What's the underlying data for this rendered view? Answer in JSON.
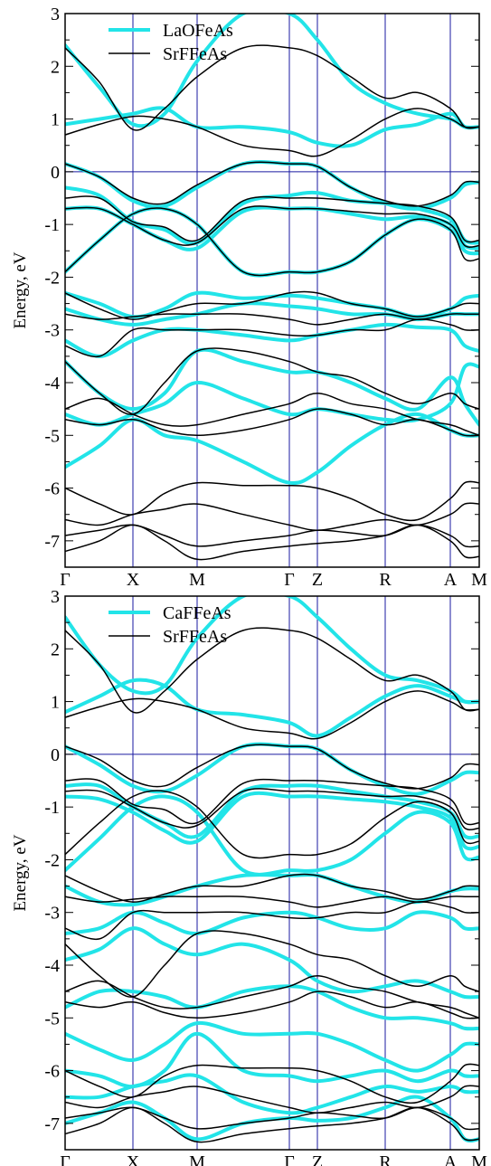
{
  "chart_data": [
    {
      "type": "line",
      "ylabel": "Energy, eV",
      "ylim": [
        -7.5,
        3
      ],
      "yticks": [
        -7,
        -6,
        -5,
        -4,
        -3,
        -2,
        -1,
        0,
        1,
        2,
        3
      ],
      "kpoint_labels": [
        "Γ",
        "X",
        "M",
        "Γ",
        "Z",
        "R",
        "A",
        "M"
      ],
      "fermi_level": 0,
      "legend": [
        "LaOFeAs",
        "SrFFeAs"
      ],
      "legend_position": "top-left",
      "colors": {
        "LaOFeAs": "#22e4e8",
        "SrFFeAs": "#000000",
        "frame": "#000000",
        "vlines": "#1a1aa0"
      },
      "series": [
        {
          "name": "LaOFeAs",
          "bands": [
            [
              2.4,
              1.6,
              0.9,
              1.1,
              2.1,
              3.0,
              3.0,
              2.5,
              1.7,
              1.3,
              1.1,
              1.0,
              0.85,
              0.85
            ],
            [
              0.9,
              1.0,
              1.1,
              1.2,
              0.85,
              0.85,
              0.75,
              0.55,
              0.5,
              0.8,
              0.9,
              1.1,
              0.85,
              0.85
            ],
            [
              0.15,
              -0.1,
              -0.55,
              -0.65,
              -0.3,
              0.15,
              0.15,
              0.1,
              -0.3,
              -0.6,
              -0.7,
              -0.5,
              -0.25,
              -0.2
            ],
            [
              -0.3,
              -0.45,
              -0.95,
              -1.1,
              -1.35,
              -0.6,
              -0.45,
              -0.4,
              -0.55,
              -0.6,
              -0.7,
              -0.9,
              -1.3,
              -1.35
            ],
            [
              -0.7,
              -0.7,
              -1.0,
              -1.3,
              -1.45,
              -0.75,
              -0.7,
              -0.7,
              -0.8,
              -0.9,
              -0.85,
              -1.0,
              -1.4,
              -1.45
            ],
            [
              -1.9,
              -1.3,
              -0.8,
              -0.7,
              -1.0,
              -1.9,
              -1.9,
              -1.9,
              -1.7,
              -1.2,
              -0.9,
              -1.1,
              -1.5,
              -1.55
            ],
            [
              -2.3,
              -2.5,
              -2.75,
              -2.6,
              -2.3,
              -2.4,
              -2.35,
              -2.4,
              -2.5,
              -2.6,
              -2.75,
              -2.6,
              -2.4,
              -2.35
            ],
            [
              -2.6,
              -2.8,
              -2.9,
              -2.8,
              -2.7,
              -2.5,
              -2.55,
              -2.6,
              -2.7,
              -2.7,
              -2.8,
              -2.7,
              -2.7,
              -2.7
            ],
            [
              -3.2,
              -3.5,
              -3.2,
              -3.0,
              -3.0,
              -3.1,
              -3.2,
              -3.1,
              -3.0,
              -2.9,
              -2.95,
              -3.0,
              -3.3,
              -3.4
            ],
            [
              -3.6,
              -4.2,
              -4.5,
              -4.2,
              -3.4,
              -3.6,
              -3.8,
              -3.8,
              -4.0,
              -4.3,
              -4.5,
              -3.9,
              -4.4,
              -4.8
            ],
            [
              -4.6,
              -4.8,
              -4.6,
              -4.4,
              -4.0,
              -4.3,
              -4.6,
              -4.5,
              -4.6,
              -4.7,
              -4.7,
              -4.4,
              -3.7,
              -3.7
            ],
            [
              -5.6,
              -5.2,
              -4.7,
              -5.0,
              -5.1,
              -5.5,
              -5.9,
              -5.7,
              -5.2,
              -4.8,
              -4.6,
              -4.9,
              -5.0,
              -5.0
            ]
          ]
        },
        {
          "name": "SrFFeAs",
          "bands": [
            [
              2.35,
              1.7,
              0.8,
              1.2,
              1.8,
              2.35,
              2.35,
              2.2,
              1.8,
              1.4,
              1.5,
              1.2,
              0.85,
              0.85
            ],
            [
              0.7,
              0.9,
              1.05,
              1.0,
              0.85,
              0.5,
              0.4,
              0.3,
              0.6,
              1.0,
              1.2,
              1.0,
              0.85,
              0.85
            ],
            [
              0.15,
              -0.1,
              -0.5,
              -0.6,
              -0.25,
              0.15,
              0.15,
              0.1,
              -0.3,
              -0.55,
              -0.65,
              -0.45,
              -0.2,
              -0.2
            ],
            [
              -0.5,
              -0.5,
              -0.95,
              -1.05,
              -1.3,
              -0.55,
              -0.5,
              -0.5,
              -0.55,
              -0.6,
              -0.65,
              -0.85,
              -1.3,
              -1.3
            ],
            [
              -0.7,
              -0.7,
              -1.0,
              -1.3,
              -1.35,
              -0.7,
              -0.7,
              -0.7,
              -0.75,
              -0.8,
              -0.8,
              -1.0,
              -1.4,
              -1.4
            ],
            [
              -1.9,
              -1.3,
              -0.8,
              -0.7,
              -1.0,
              -1.9,
              -1.9,
              -1.9,
              -1.7,
              -1.2,
              -0.9,
              -1.1,
              -1.65,
              -1.65
            ],
            [
              -2.3,
              -2.6,
              -2.8,
              -2.65,
              -2.5,
              -2.5,
              -2.3,
              -2.3,
              -2.5,
              -2.6,
              -2.75,
              -2.6,
              -2.5,
              -2.5
            ],
            [
              -2.7,
              -2.8,
              -2.75,
              -2.7,
              -2.7,
              -2.7,
              -2.8,
              -2.9,
              -2.8,
              -2.7,
              -2.8,
              -2.7,
              -2.7,
              -2.7
            ],
            [
              -3.3,
              -3.5,
              -3.0,
              -3.0,
              -3.0,
              -3.0,
              -3.1,
              -3.1,
              -3.0,
              -3.0,
              -2.8,
              -2.9,
              -3.0,
              -3.0
            ],
            [
              -3.6,
              -4.2,
              -4.6,
              -4.0,
              -3.4,
              -3.4,
              -3.6,
              -3.8,
              -3.9,
              -4.2,
              -4.4,
              -4.2,
              -4.4,
              -4.5
            ],
            [
              -4.5,
              -4.3,
              -4.6,
              -4.8,
              -4.8,
              -4.6,
              -4.4,
              -4.2,
              -4.4,
              -4.5,
              -4.7,
              -4.8,
              -4.9,
              -5.0
            ],
            [
              -4.7,
              -4.8,
              -4.7,
              -4.9,
              -5.0,
              -4.9,
              -4.7,
              -4.5,
              -4.6,
              -4.8,
              -4.7,
              -4.9,
              -5.0,
              -5.0
            ],
            [
              -6.0,
              -6.3,
              -6.5,
              -6.1,
              -5.9,
              -5.95,
              -5.95,
              -6.0,
              -6.2,
              -6.5,
              -6.6,
              -6.2,
              -5.9,
              -5.9
            ],
            [
              -6.6,
              -6.7,
              -6.5,
              -6.4,
              -6.3,
              -6.5,
              -6.7,
              -6.8,
              -6.7,
              -6.6,
              -6.7,
              -6.5,
              -6.3,
              -6.3
            ],
            [
              -6.9,
              -6.8,
              -6.7,
              -6.9,
              -7.1,
              -7.0,
              -6.9,
              -6.8,
              -6.85,
              -6.9,
              -6.7,
              -6.9,
              -7.1,
              -7.1
            ],
            [
              -7.2,
              -7.0,
              -6.7,
              -7.0,
              -7.35,
              -7.2,
              -7.1,
              -7.05,
              -7.0,
              -6.9,
              -6.7,
              -7.0,
              -7.3,
              -7.3
            ]
          ]
        }
      ]
    },
    {
      "type": "line",
      "ylabel": "Energy, eV",
      "ylim": [
        -7.5,
        3
      ],
      "yticks": [
        -7,
        -6,
        -5,
        -4,
        -3,
        -2,
        -1,
        0,
        1,
        2,
        3
      ],
      "kpoint_labels": [
        "Γ",
        "X",
        "M",
        "Γ",
        "Z",
        "R",
        "A",
        "M"
      ],
      "fermi_level": 0,
      "legend": [
        "CaFFeAs",
        "SrFFeAs"
      ],
      "legend_position": "top-left",
      "colors": {
        "CaFFeAs": "#22e4e8",
        "SrFFeAs": "#000000",
        "frame": "#000000",
        "vlines": "#1a1aa0"
      },
      "series": [
        {
          "name": "CaFFeAs",
          "bands": [
            [
              2.6,
              1.7,
              1.2,
              1.3,
              2.2,
              3.0,
              3.0,
              2.6,
              2.0,
              1.5,
              1.4,
              1.2,
              1.0,
              1.0
            ],
            [
              0.8,
              1.1,
              1.4,
              1.3,
              0.85,
              0.75,
              0.6,
              0.35,
              0.7,
              1.1,
              1.3,
              1.1,
              1.0,
              1.0
            ],
            [
              0.15,
              -0.2,
              -0.6,
              -0.7,
              -0.4,
              0.15,
              0.15,
              0.1,
              -0.3,
              -0.6,
              -0.75,
              -0.5,
              -0.35,
              -0.35
            ],
            [
              -0.6,
              -0.6,
              -1.0,
              -1.3,
              -1.55,
              -0.7,
              -0.6,
              -0.6,
              -0.7,
              -0.8,
              -0.9,
              -1.1,
              -1.55,
              -1.55
            ],
            [
              -0.8,
              -0.85,
              -1.1,
              -1.45,
              -1.65,
              -0.8,
              -0.8,
              -0.8,
              -0.85,
              -0.9,
              -1.0,
              -1.2,
              -1.75,
              -1.75
            ],
            [
              -2.2,
              -1.6,
              -1.0,
              -0.8,
              -1.1,
              -2.2,
              -2.2,
              -2.2,
              -2.0,
              -1.5,
              -1.1,
              -1.3,
              -1.95,
              -1.95
            ],
            [
              -2.5,
              -2.8,
              -2.85,
              -2.7,
              -2.5,
              -2.3,
              -2.3,
              -2.3,
              -2.5,
              -2.7,
              -2.8,
              -2.6,
              -2.55,
              -2.55
            ],
            [
              -3.4,
              -3.3,
              -3.0,
              -3.2,
              -3.4,
              -3.1,
              -3.0,
              -3.1,
              -3.3,
              -3.3,
              -3.0,
              -3.1,
              -3.3,
              -3.3
            ],
            [
              -3.9,
              -3.7,
              -3.3,
              -3.6,
              -3.8,
              -3.6,
              -3.9,
              -4.3,
              -4.5,
              -4.4,
              -4.3,
              -4.5,
              -4.6,
              -4.6
            ],
            [
              -4.8,
              -4.5,
              -4.5,
              -4.6,
              -4.8,
              -4.5,
              -4.4,
              -4.5,
              -4.8,
              -5.0,
              -5.0,
              -5.1,
              -5.2,
              -5.2
            ],
            [
              -5.3,
              -5.6,
              -5.8,
              -5.5,
              -5.1,
              -5.3,
              -5.3,
              -5.3,
              -5.5,
              -5.8,
              -6.0,
              -5.7,
              -5.5,
              -5.5
            ],
            [
              -6.0,
              -6.1,
              -6.3,
              -6.0,
              -5.3,
              -6.0,
              -6.1,
              -6.2,
              -6.1,
              -6.0,
              -6.2,
              -6.0,
              -6.1,
              -6.1
            ],
            [
              -6.5,
              -6.5,
              -6.3,
              -6.2,
              -6.1,
              -6.6,
              -6.8,
              -6.7,
              -6.5,
              -6.3,
              -6.4,
              -6.3,
              -6.4,
              -6.4
            ],
            [
              -7.0,
              -6.8,
              -6.6,
              -6.9,
              -7.3,
              -7.0,
              -6.9,
              -6.95,
              -6.9,
              -6.7,
              -6.5,
              -6.9,
              -7.3,
              -7.3
            ]
          ]
        },
        {
          "name": "SrFFeAs",
          "bands": [
            [
              2.35,
              1.7,
              0.8,
              1.2,
              1.8,
              2.35,
              2.35,
              2.2,
              1.8,
              1.4,
              1.5,
              1.2,
              0.85,
              0.85
            ],
            [
              0.7,
              0.9,
              1.05,
              1.0,
              0.85,
              0.5,
              0.4,
              0.3,
              0.6,
              1.0,
              1.2,
              1.0,
              0.85,
              0.85
            ],
            [
              0.15,
              -0.1,
              -0.5,
              -0.6,
              -0.25,
              0.15,
              0.15,
              0.1,
              -0.3,
              -0.55,
              -0.65,
              -0.45,
              -0.2,
              -0.2
            ],
            [
              -0.5,
              -0.5,
              -0.95,
              -1.05,
              -1.3,
              -0.55,
              -0.5,
              -0.5,
              -0.55,
              -0.6,
              -0.65,
              -0.85,
              -1.3,
              -1.3
            ],
            [
              -0.7,
              -0.7,
              -1.0,
              -1.3,
              -1.35,
              -0.7,
              -0.7,
              -0.7,
              -0.75,
              -0.8,
              -0.8,
              -1.0,
              -1.4,
              -1.4
            ],
            [
              -1.9,
              -1.3,
              -0.8,
              -0.7,
              -1.0,
              -1.9,
              -1.9,
              -1.9,
              -1.7,
              -1.2,
              -0.9,
              -1.1,
              -1.65,
              -1.65
            ],
            [
              -2.3,
              -2.6,
              -2.8,
              -2.65,
              -2.5,
              -2.5,
              -2.3,
              -2.3,
              -2.5,
              -2.6,
              -2.75,
              -2.6,
              -2.5,
              -2.5
            ],
            [
              -2.7,
              -2.8,
              -2.75,
              -2.7,
              -2.7,
              -2.7,
              -2.8,
              -2.9,
              -2.8,
              -2.7,
              -2.8,
              -2.7,
              -2.7,
              -2.7
            ],
            [
              -3.3,
              -3.5,
              -3.0,
              -3.0,
              -3.0,
              -3.0,
              -3.1,
              -3.1,
              -3.0,
              -3.0,
              -2.8,
              -2.9,
              -3.0,
              -3.0
            ],
            [
              -3.6,
              -4.2,
              -4.6,
              -4.0,
              -3.4,
              -3.4,
              -3.6,
              -3.8,
              -3.9,
              -4.2,
              -4.4,
              -4.2,
              -4.4,
              -4.5
            ],
            [
              -4.5,
              -4.3,
              -4.6,
              -4.8,
              -4.8,
              -4.6,
              -4.4,
              -4.2,
              -4.4,
              -4.5,
              -4.7,
              -4.8,
              -4.9,
              -5.0
            ],
            [
              -4.7,
              -4.8,
              -4.7,
              -4.9,
              -5.0,
              -4.9,
              -4.7,
              -4.5,
              -4.6,
              -4.8,
              -4.7,
              -4.9,
              -5.0,
              -5.0
            ],
            [
              -6.0,
              -6.3,
              -6.5,
              -6.1,
              -5.9,
              -5.95,
              -5.95,
              -6.0,
              -6.2,
              -6.5,
              -6.6,
              -6.2,
              -5.9,
              -5.9
            ],
            [
              -6.6,
              -6.7,
              -6.5,
              -6.4,
              -6.3,
              -6.5,
              -6.7,
              -6.8,
              -6.7,
              -6.6,
              -6.7,
              -6.5,
              -6.3,
              -6.3
            ],
            [
              -6.9,
              -6.8,
              -6.7,
              -6.9,
              -7.1,
              -7.0,
              -6.9,
              -6.8,
              -6.85,
              -6.9,
              -6.7,
              -6.9,
              -7.1,
              -7.1
            ],
            [
              -7.2,
              -7.0,
              -6.7,
              -7.0,
              -7.35,
              -7.2,
              -7.1,
              -7.05,
              -7.0,
              -6.9,
              -6.7,
              -7.0,
              -7.3,
              -7.3
            ]
          ]
        }
      ]
    }
  ]
}
